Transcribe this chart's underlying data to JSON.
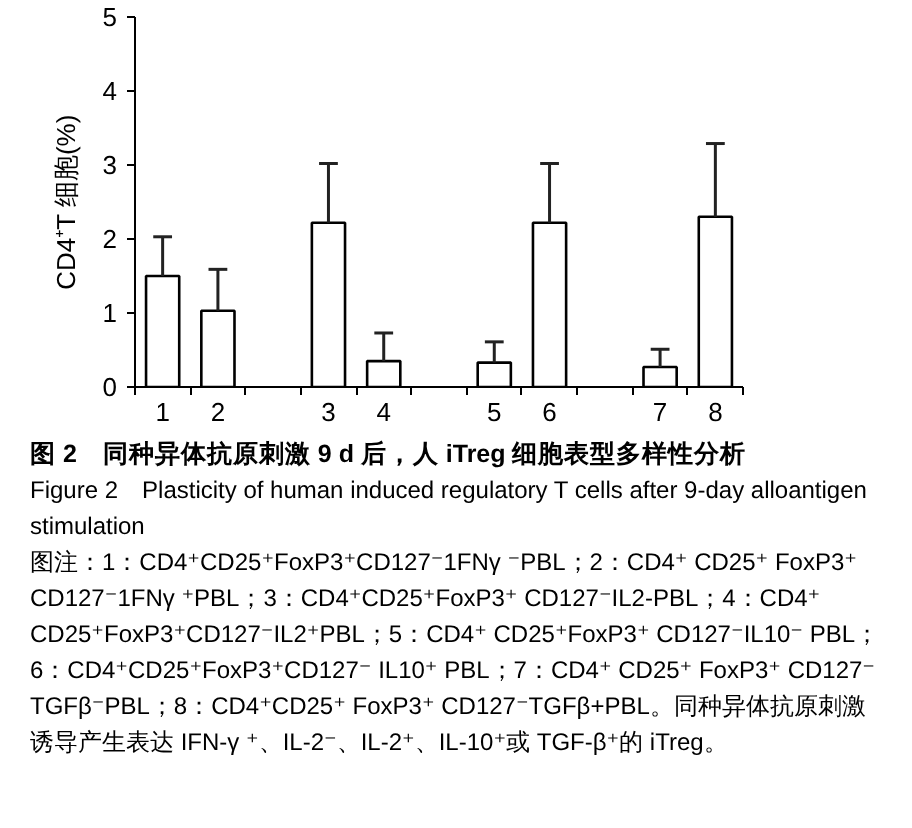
{
  "chart_data": {
    "type": "bar",
    "title": "图 2　同种异体抗原刺激 9 d 后，人 iTreg 细胞表型多样性分析",
    "subtitle": "Figure 2　Plasticity of human induced regulatory T cells after 9-day alloantigen stimulation",
    "ylabel": "CD4⁺T 细胞(%)",
    "annotations": [
      "图注：1：CD4⁺CD25⁺FoxP3⁺CD127⁻1FNγ ⁻PBL；2：CD4⁺ CD25⁺ FoxP3⁺ CD127⁻1FNγ ⁺PBL；3：CD4⁺CD25⁺FoxP3⁺ CD127⁻IL2-PBL；4：CD4⁺ CD25⁺FoxP3⁺CD127⁻IL2⁺PBL；5：CD4⁺ CD25⁺FoxP3⁺ CD127⁻IL10⁻ PBL；6：CD4⁺CD25⁺FoxP3⁺CD127⁻ IL10⁺ PBL；7：CD4⁺ CD25⁺ FoxP3⁺ CD127⁻ TGFβ⁻PBL；8：CD4⁺CD25⁺ FoxP3⁺ CD127⁻TGFβ+PBL。同种异体抗原刺激诱导产生表达 IFN-γ ⁺、IL-2⁻、IL-2⁺、IL-10⁺或 TGF-β⁺的 iTreg。"
    ],
    "categories": [
      "1",
      "2",
      null,
      "3",
      "4",
      null,
      "5",
      "6",
      null,
      "7",
      "8"
    ],
    "values": [
      1.5,
      1.03,
      null,
      2.22,
      0.35,
      null,
      0.33,
      2.22,
      null,
      0.27,
      2.3
    ],
    "errors": [
      [
        1.5,
        2.03
      ],
      [
        1.03,
        1.59
      ],
      null,
      [
        2.22,
        3.02
      ],
      [
        0.35,
        0.73
      ],
      null,
      [
        0.33,
        0.61
      ],
      [
        2.22,
        3.02
      ],
      null,
      [
        0.27,
        0.51
      ],
      [
        2.3,
        3.29
      ]
    ],
    "color": "#ffffff",
    "ylim": [
      0,
      5
    ],
    "yticks": [
      0,
      1,
      2,
      3,
      4,
      5
    ]
  }
}
